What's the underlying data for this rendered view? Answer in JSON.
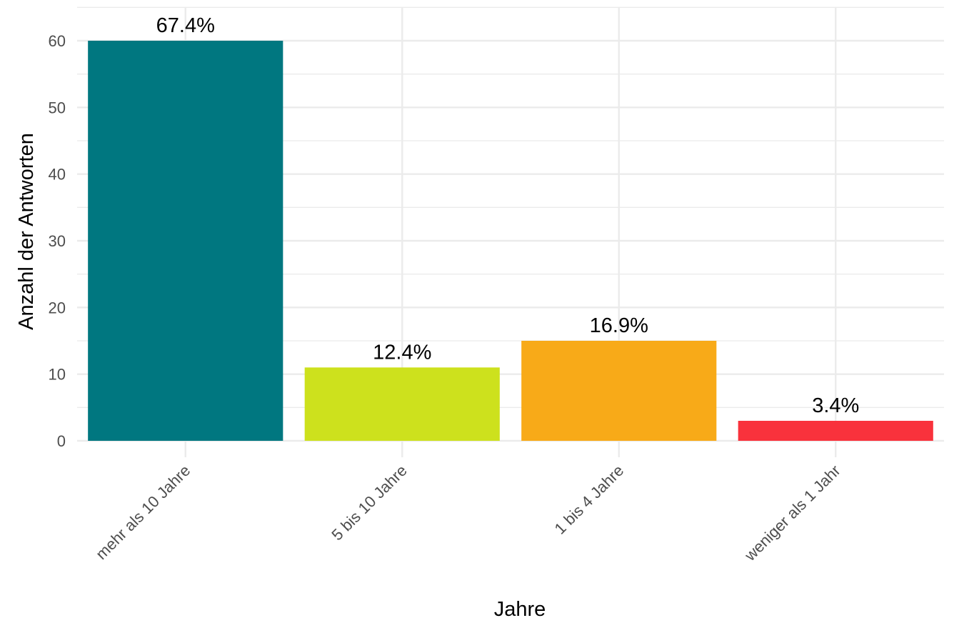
{
  "chart_data": {
    "type": "bar",
    "categories": [
      "mehr als 10 Jahre",
      "5 bis 10 Jahre",
      "1 bis 4 Jahre",
      "weniger als 1 Jahr"
    ],
    "values": [
      60,
      11,
      15,
      3
    ],
    "labels": [
      "67.4%",
      "12.4%",
      "16.9%",
      "3.4%"
    ],
    "colors": [
      "#007780",
      "#cde11d",
      "#f8aa18",
      "#f9323c"
    ],
    "xlabel": "Jahre",
    "ylabel": "Anzahl der Antworten",
    "yticks": [
      0,
      10,
      20,
      30,
      40,
      50,
      60
    ],
    "ylim": [
      0,
      65
    ],
    "grid": true,
    "legend": "none"
  }
}
